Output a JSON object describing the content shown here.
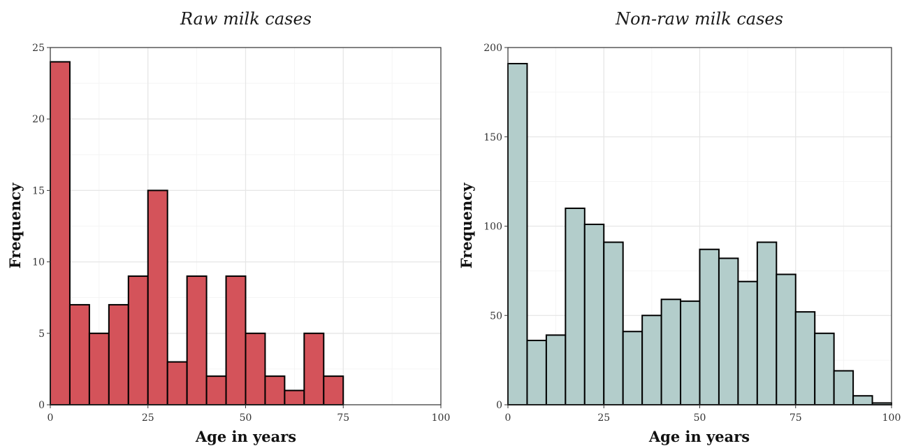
{
  "chart_data": [
    {
      "type": "bar",
      "title": "Raw milk cases",
      "xlabel": "Age in years",
      "ylabel": "Frequency",
      "bin_width": 5,
      "bins_start": [
        0,
        5,
        10,
        15,
        20,
        25,
        30,
        35,
        40,
        45,
        50,
        55,
        60,
        65,
        70
      ],
      "values": [
        24,
        7,
        5,
        7,
        9,
        15,
        3,
        9,
        2,
        9,
        5,
        2,
        1,
        5,
        2
      ],
      "xlim": [
        0,
        100
      ],
      "ylim": [
        0,
        25
      ],
      "x_ticks": [
        "0",
        "25",
        "50",
        "75",
        "100"
      ],
      "y_ticks": [
        "0",
        "5",
        "10",
        "15",
        "20",
        "25"
      ],
      "color": "#d4535a",
      "grid": true
    },
    {
      "type": "bar",
      "title": "Non-raw milk cases",
      "xlabel": "Age in years",
      "ylabel": "Frequency",
      "bin_width": 5,
      "bins_start": [
        0,
        5,
        10,
        15,
        20,
        25,
        30,
        35,
        40,
        45,
        50,
        55,
        60,
        65,
        70,
        75,
        80,
        85,
        90,
        95
      ],
      "values": [
        191,
        36,
        39,
        110,
        101,
        91,
        41,
        50,
        59,
        58,
        87,
        82,
        69,
        91,
        73,
        52,
        40,
        19,
        5,
        1
      ],
      "xlim": [
        0,
        100
      ],
      "ylim": [
        0,
        200
      ],
      "x_ticks": [
        "0",
        "25",
        "50",
        "75",
        "100"
      ],
      "y_ticks": [
        "0",
        "50",
        "100",
        "150",
        "200"
      ],
      "color": "#b3cdcb",
      "grid": true
    }
  ]
}
